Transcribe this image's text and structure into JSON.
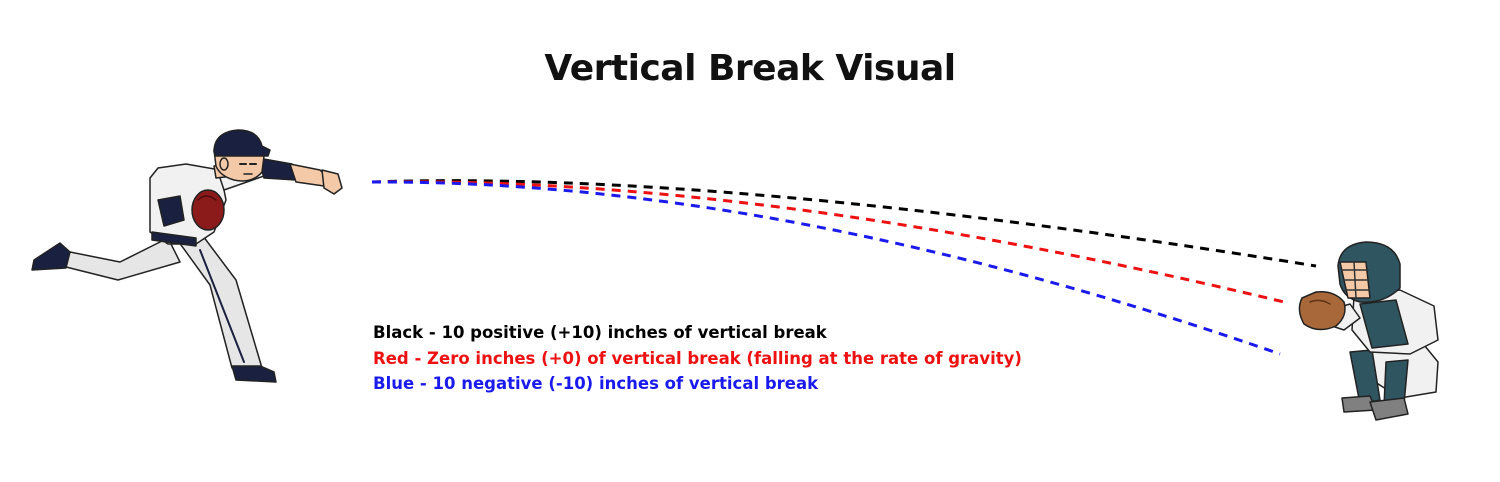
{
  "title": "Vertical Break Visual",
  "legend": [
    {
      "label": "Black - 10 positive (+10) inches of vertical break",
      "color": "#000000"
    },
    {
      "label": "Red - Zero inches (+0) of vertical break (falling at the rate of gravity)",
      "color": "#ee1111"
    },
    {
      "label": "Blue - 10 negative (-10) inches of vertical break",
      "color": "#1a1aee"
    }
  ],
  "trajectories": [
    {
      "color": "#000000",
      "break_inches": 10
    },
    {
      "color": "#ee1111",
      "break_inches": 0
    },
    {
      "color": "#1a1aee",
      "break_inches": -10
    }
  ],
  "colors": {
    "uniform": "#ececec",
    "cap": "#1a2140",
    "glove": "#8b1a1a",
    "catcher_gear": "#2f5560",
    "mitt": "#a8683a"
  },
  "icons": [
    "pitcher-figure",
    "catcher-figure"
  ]
}
